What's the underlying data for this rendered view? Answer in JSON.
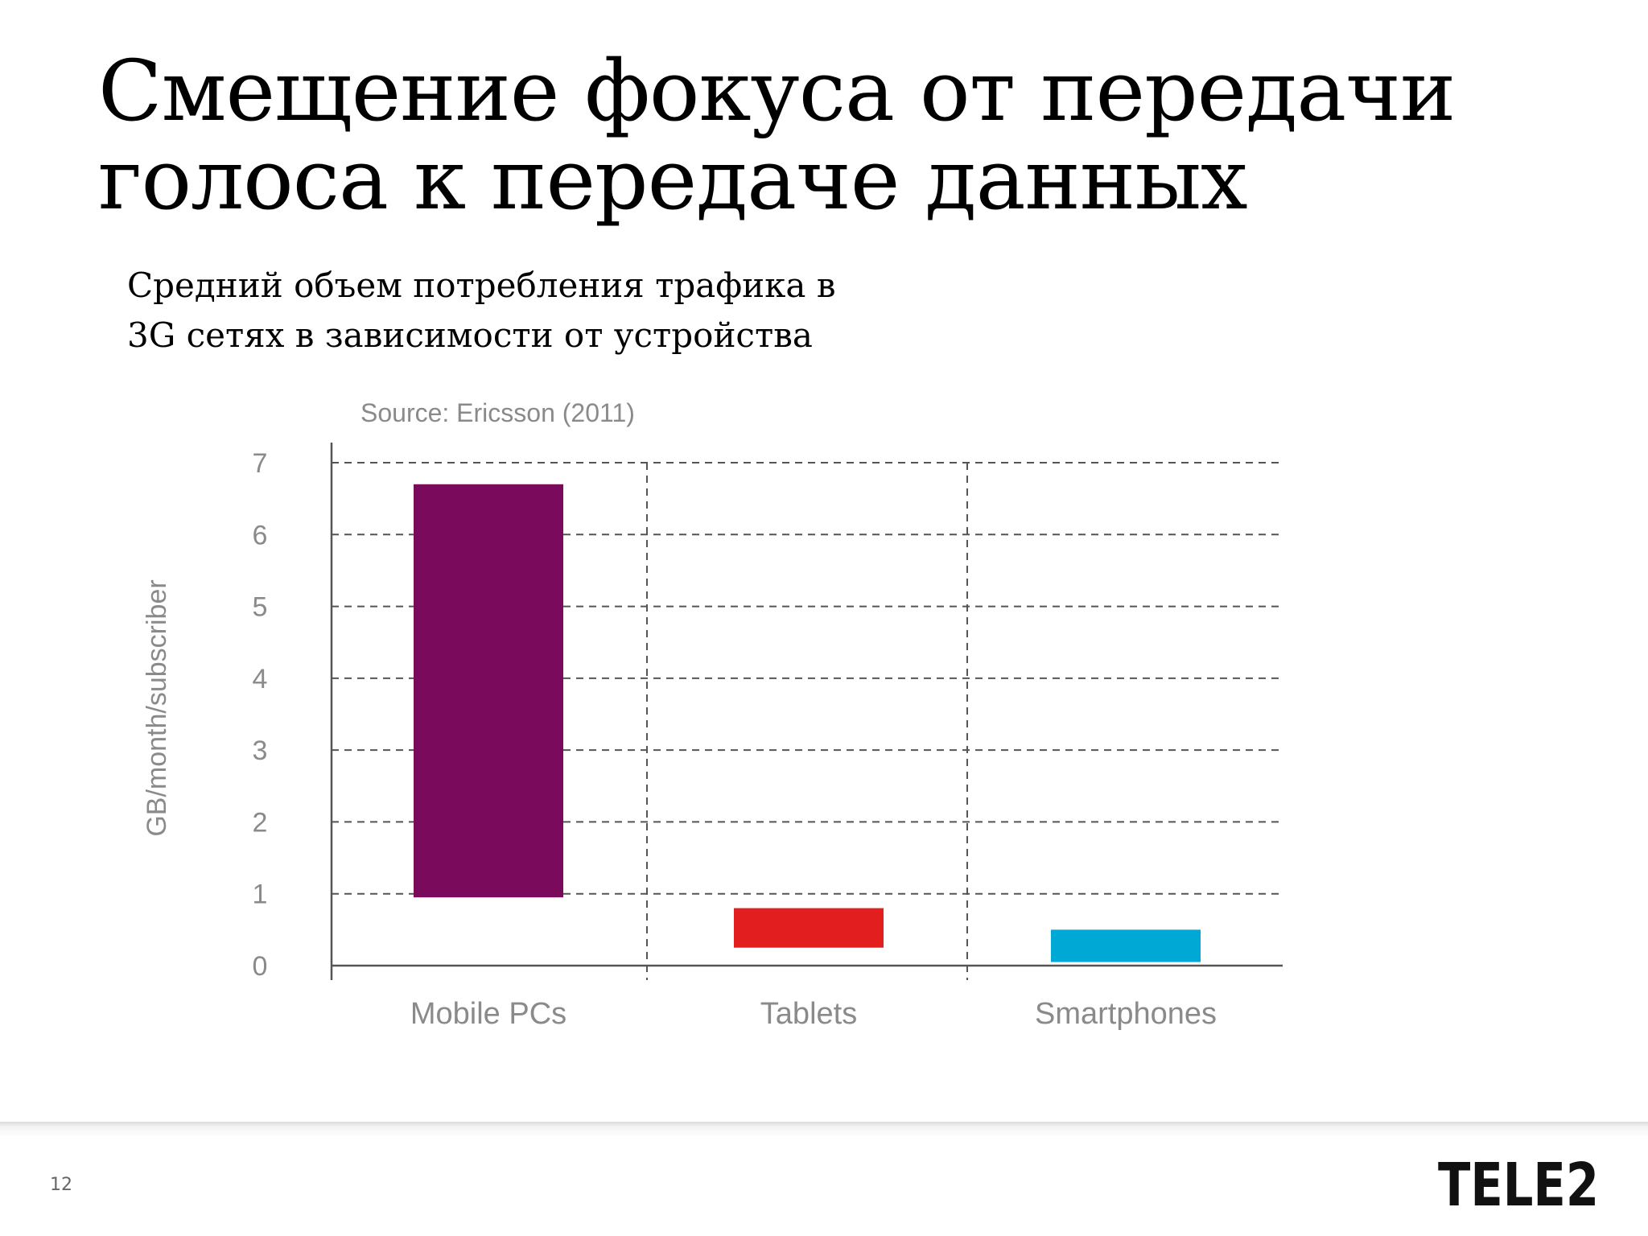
{
  "slide": {
    "title_line1": "Смещение фокуса от передачи",
    "title_line2": "голоса к передаче данных",
    "subtitle_line1": "Средний объем потребления трафика в",
    "subtitle_line2": "3G сетях в зависимости от устройства",
    "page_number": "12",
    "logo_text": "TELE2"
  },
  "chart_data": {
    "type": "bar",
    "annotation": "Source: Ericsson (2011)",
    "ylabel": "GB/month/subscriber",
    "categories": [
      "Mobile PCs",
      "Tablets",
      "Smartphones"
    ],
    "ranges": [
      {
        "from": 0.95,
        "to": 6.7
      },
      {
        "from": 0.25,
        "to": 0.8
      },
      {
        "from": 0.05,
        "to": 0.5
      }
    ],
    "colors": [
      "#7a0a5c",
      "#e21e1e",
      "#00a8d6"
    ],
    "ylim": [
      0,
      7
    ],
    "yticks": [
      0,
      1,
      2,
      3,
      4,
      5,
      6,
      7
    ],
    "grid": true
  }
}
